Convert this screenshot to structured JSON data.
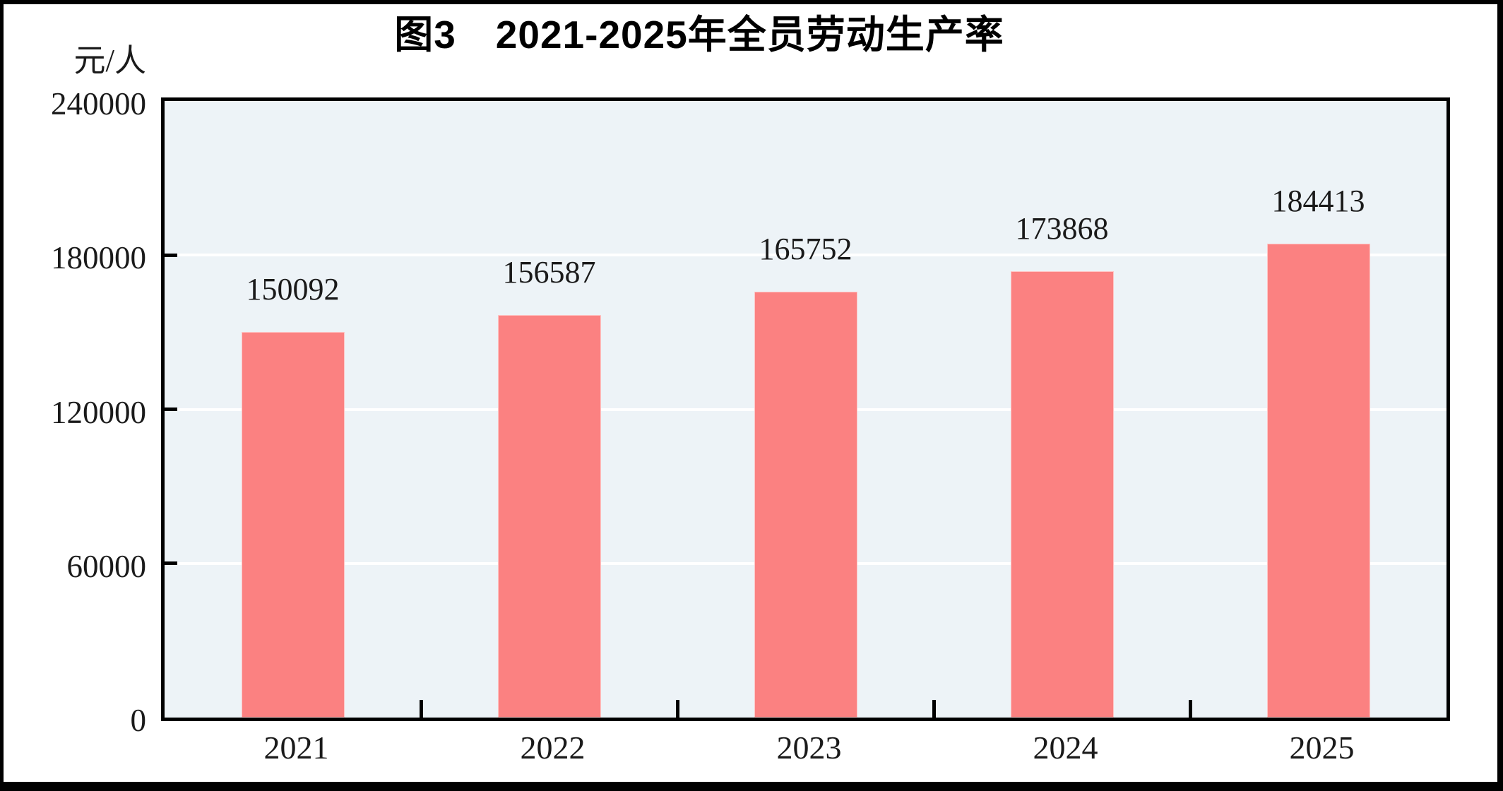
{
  "figure_label": "图3",
  "chart_data": {
    "type": "bar",
    "title": "图3　2021-2025年全员劳动生产率",
    "ylabel": "元/人",
    "xlabel": "",
    "categories": [
      "2021",
      "2022",
      "2023",
      "2024",
      "2025"
    ],
    "values": [
      150092,
      156587,
      165752,
      173868,
      184413
    ],
    "value_labels": [
      "150092",
      "156587",
      "165752",
      "173868",
      "184413"
    ],
    "yticks": [
      0,
      60000,
      120000,
      180000,
      240000
    ],
    "ytick_labels": [
      "0",
      "60000",
      "120000",
      "180000",
      "240000"
    ],
    "ylim": [
      0,
      240000
    ],
    "grid": true,
    "legend": "none",
    "colors": {
      "bar": "#fb8181",
      "bar_edge": "#ffc6c6",
      "plot_background": "#edf3f7",
      "gridline": "#ffffff",
      "axis_frame": "#000000",
      "text": "#1a1a1a"
    }
  }
}
